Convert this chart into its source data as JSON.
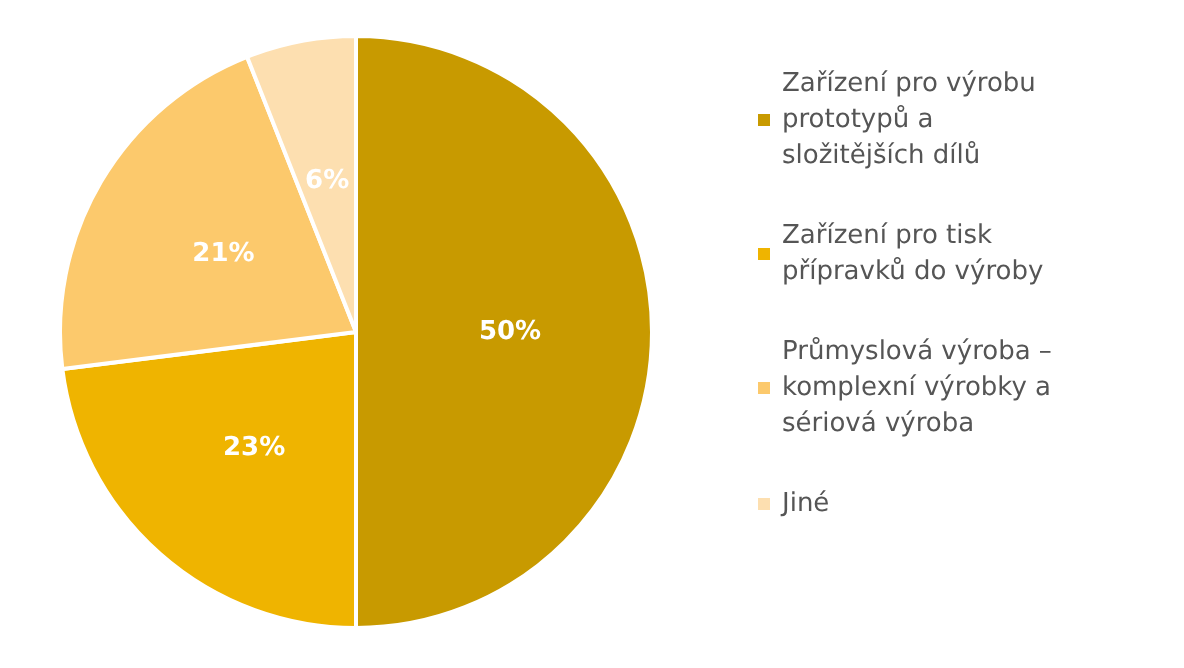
{
  "chart_data": {
    "type": "pie",
    "categories": [
      "Zařízení pro výrobu prototypů a složitějších dílů",
      "Zařízení pro tisk přípravků do výroby",
      "Průmyslová výroba – komplexní výrobky a sériová výroba",
      "Jiné"
    ],
    "values": [
      50,
      23,
      21,
      6
    ],
    "colors": [
      "#c89a00",
      "#efb400",
      "#fcc96c",
      "#fddfb0"
    ],
    "value_labels": [
      "50%",
      "23%",
      "21%",
      "6%"
    ],
    "legend": "right"
  }
}
